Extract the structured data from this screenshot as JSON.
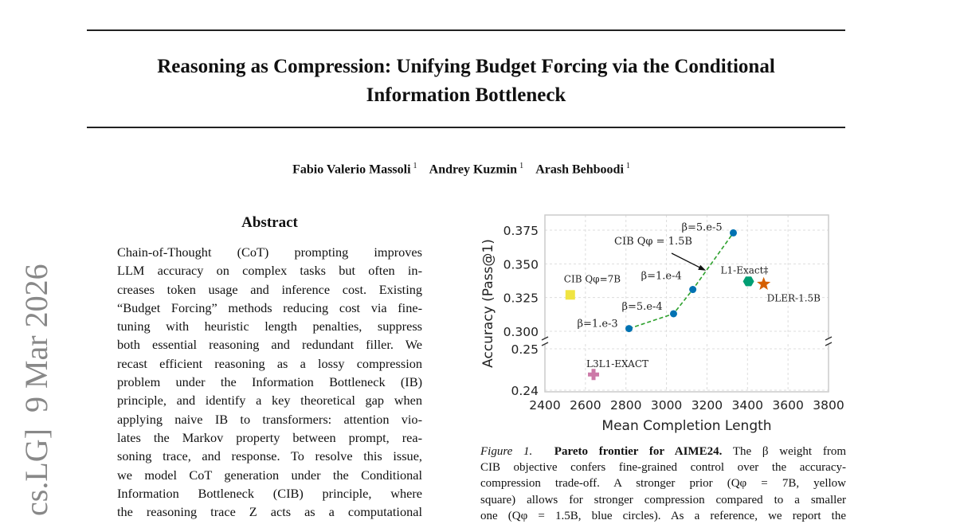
{
  "paper": {
    "title_lines": [
      "Reasoning as Compression: Unifying Budget Forcing via the Conditional",
      "Information Bottleneck"
    ],
    "authors": [
      {
        "name": "Fabio Valerio Massoli",
        "affil": "1"
      },
      {
        "name": "Andrey Kuzmin",
        "affil": "1"
      },
      {
        "name": "Arash Behboodi",
        "affil": "1"
      }
    ],
    "arxiv_stamp": "cs.LG]  9 Mar 2026",
    "abstract_heading": "Abstract",
    "abstract_lines": [
      "Chain-of-Thought (CoT) prompting improves",
      "LLM accuracy on complex tasks but often in-",
      "creases token usage and inference cost. Existing",
      "“Budget Forcing” methods reducing cost via fine-",
      "tuning with heuristic length penalties, suppress",
      "both essential reasoning and redundant filler. We",
      "recast efficient reasoning as a lossy compression",
      "problem under the Information Bottleneck (IB)",
      "principle, and identify a key theoretical gap when",
      "applying naive IB to transformers: attention vio-",
      "lates the Markov property between prompt, rea-",
      "soning trace, and response. To resolve this issue,",
      "we model CoT generation under the Conditional",
      "Information Bottleneck (CIB) principle, where",
      "the reasoning trace Z acts as a computational"
    ],
    "caption": {
      "label": "Figure 1.",
      "bold": "Pareto frontier for AIME24.",
      "line1_rest": "The β weight from",
      "lines": [
        "CIB objective confers fine-grained control over the accuracy-",
        "compression trade-off.  A stronger prior (Qφ = 7B, yellow",
        "square) allows for stronger compression compared to a smaller",
        "one (Qφ = 1.5B, blue circles).  As a reference, we report the"
      ]
    }
  },
  "chart_data": {
    "type": "scatter",
    "xlabel": "Mean Completion Length",
    "ylabel": "Accuracy (Pass@1)",
    "xlim": [
      2400,
      3800
    ],
    "xticks": [
      2400,
      2600,
      2800,
      3000,
      3200,
      3400,
      3600,
      3800
    ],
    "broken_y_axis": true,
    "ylim_upper": [
      0.2935,
      0.385
    ],
    "yticks_upper": [
      "0.300",
      "0.325",
      "0.350",
      "0.375"
    ],
    "ylim_lower": [
      0.2396,
      0.2513
    ],
    "yticks_lower": [
      "0.24",
      "0.25"
    ],
    "grid": true,
    "series": [
      {
        "name": "CIB Qφ=1.5B",
        "color": "#0072b2",
        "marker": "circle",
        "line": "dashed",
        "line_color": "#2ca02c",
        "points": [
          {
            "x": 2815,
            "y": 0.302,
            "label": "β=1.e-3"
          },
          {
            "x": 3035,
            "y": 0.313,
            "label": "β=5.e-4"
          },
          {
            "x": 3130,
            "y": 0.331,
            "label": "β=1.e-4"
          },
          {
            "x": 3330,
            "y": 0.373,
            "label": "β=5.e-5"
          }
        ]
      },
      {
        "name": "CIB Qφ=7B",
        "color": "#f0e442",
        "marker": "square",
        "points": [
          {
            "x": 2525,
            "y": 0.327
          }
        ]
      },
      {
        "name": "L1-Exact‡",
        "color": "#009e73",
        "marker": "hexagon",
        "points": [
          {
            "x": 3405,
            "y": 0.337
          }
        ]
      },
      {
        "name": "DLER-1.5B",
        "color": "#d55e00",
        "marker": "star",
        "points": [
          {
            "x": 3480,
            "y": 0.335
          }
        ]
      },
      {
        "name": "L3L1-EXACT",
        "color": "#cc79a7",
        "marker": "plus",
        "points": [
          {
            "x": 2640,
            "y": 0.2438
          }
        ]
      }
    ],
    "annotations": [
      {
        "text": "CIB Qφ = 1.5B",
        "arrow": true,
        "target": {
          "x": 3195,
          "y": 0.345
        }
      }
    ]
  }
}
